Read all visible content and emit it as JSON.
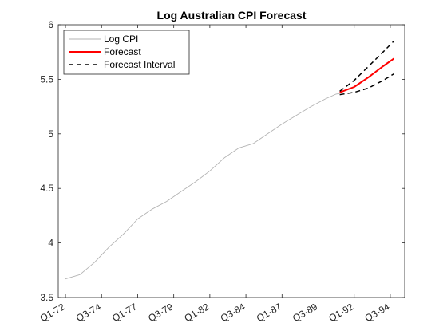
{
  "chart_data": {
    "type": "line",
    "title": "Log Australian CPI Forecast",
    "xlabel": "",
    "ylabel": "",
    "ylim": [
      3.5,
      6
    ],
    "y_ticks": [
      3.5,
      4,
      4.5,
      5,
      5.5,
      6
    ],
    "y_tick_labels": [
      "3.5",
      "4",
      "4.5",
      "5",
      "5.5",
      "6"
    ],
    "x_tick_labels": [
      "Q1-72",
      "Q3-74",
      "Q1-77",
      "Q3-79",
      "Q1-82",
      "Q3-84",
      "Q1-87",
      "Q3-89",
      "Q1-92",
      "Q3-94"
    ],
    "x_range_quarters": [
      "Q3-71",
      "Q3-95"
    ],
    "x_tick_quarters": [
      "Q1-72",
      "Q3-74",
      "Q1-77",
      "Q3-79",
      "Q1-82",
      "Q3-84",
      "Q1-87",
      "Q3-89",
      "Q1-92",
      "Q3-94"
    ],
    "grid": false,
    "legend_position": "top-left",
    "series": [
      {
        "name": "Log CPI",
        "color": "#b3b3b3",
        "style": "solid",
        "x": [
          "Q1-72",
          "Q1-73",
          "Q1-74",
          "Q1-75",
          "Q1-76",
          "Q1-77",
          "Q1-78",
          "Q1-79",
          "Q1-80",
          "Q1-81",
          "Q1-82",
          "Q1-83",
          "Q1-84",
          "Q1-85",
          "Q1-86",
          "Q1-87",
          "Q1-88",
          "Q1-89",
          "Q1-90",
          "Q4-90",
          "Q1-91"
        ],
        "y": [
          3.67,
          3.71,
          3.82,
          3.96,
          4.08,
          4.22,
          4.31,
          4.38,
          4.47,
          4.56,
          4.66,
          4.78,
          4.87,
          4.91,
          5.0,
          5.09,
          5.17,
          5.25,
          5.32,
          5.365,
          5.37
        ]
      },
      {
        "name": "Forecast",
        "color": "#ff0000",
        "style": "solid",
        "x": [
          "Q1-91",
          "Q1-92",
          "Q1-93",
          "Q1-94",
          "Q4-94"
        ],
        "y": [
          5.38,
          5.43,
          5.52,
          5.62,
          5.69
        ]
      },
      {
        "name": "Forecast Interval",
        "color": "#000000",
        "style": "dashed",
        "x": [
          "Q1-91",
          "Q1-92",
          "Q1-93",
          "Q1-94",
          "Q4-94"
        ],
        "y": [
          5.39,
          5.49,
          5.62,
          5.75,
          5.85
        ]
      },
      {
        "name": "",
        "color": "#000000",
        "style": "dashed",
        "x": [
          "Q1-91",
          "Q1-92",
          "Q1-93",
          "Q1-94",
          "Q4-94"
        ],
        "y": [
          5.36,
          5.38,
          5.42,
          5.49,
          5.55
        ]
      }
    ],
    "legend": [
      "Log CPI",
      "Forecast",
      "Forecast Interval"
    ]
  }
}
